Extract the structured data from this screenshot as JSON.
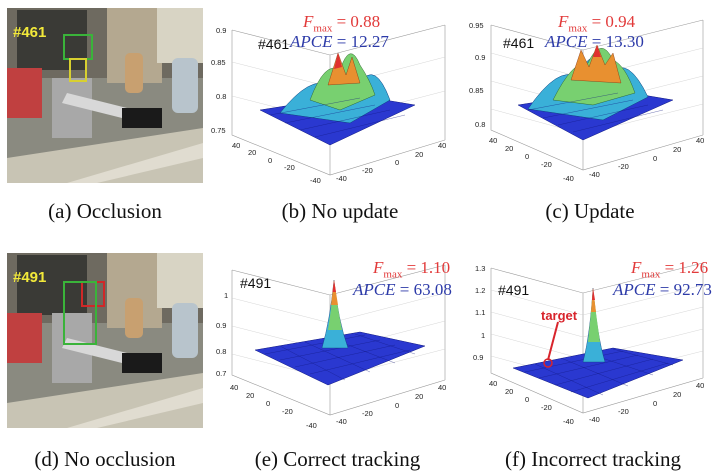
{
  "panels": [
    {
      "caption": "(a)  Occlusion",
      "frame_label": "#461"
    },
    {
      "caption": "(b)  No update",
      "fig_id": "#461",
      "fmax_symbol": "F",
      "fmax_sub": "max",
      "fmax_value": "= 0.88",
      "apce_label": "APCE",
      "apce_value": "= 12.27",
      "z_ticks": [
        "0.9",
        "0.85",
        "0.8",
        "0.75"
      ],
      "x_ticks": [
        "40",
        "20",
        "0",
        "-20",
        "-40"
      ],
      "y_ticks": [
        "-40",
        "-20",
        "0",
        "20",
        "40"
      ]
    },
    {
      "caption": "(c)  Update",
      "fig_id": "#461",
      "fmax_symbol": "F",
      "fmax_sub": "max",
      "fmax_value": "= 0.94",
      "apce_label": "APCE",
      "apce_value": "= 13.30",
      "z_ticks": [
        "0.95",
        "0.9",
        "0.85",
        "0.8"
      ],
      "x_ticks": [
        "40",
        "20",
        "0",
        "-20",
        "-40"
      ],
      "y_ticks": [
        "-40",
        "-20",
        "0",
        "20",
        "40"
      ]
    },
    {
      "caption": "(d)  No occlusion",
      "frame_label": "#491"
    },
    {
      "caption": "(e)  Correct tracking",
      "fig_id": "#491",
      "fmax_symbol": "F",
      "fmax_sub": "max",
      "fmax_value": "= 1.10",
      "apce_label": "APCE",
      "apce_value": "= 63.08",
      "z_ticks": [
        "1",
        "0.9",
        "0.8",
        "0.7"
      ],
      "x_ticks": [
        "40",
        "20",
        "0",
        "-20",
        "-40"
      ],
      "y_ticks": [
        "-40",
        "-20",
        "0",
        "20",
        "40"
      ]
    },
    {
      "caption": "(f)  Incorrect tracking",
      "fig_id": "#491",
      "fmax_symbol": "F",
      "fmax_sub": "max",
      "fmax_value": "= 1.26",
      "apce_label": "APCE",
      "apce_value": "= 92.73",
      "z_ticks": [
        "1.3",
        "1.2",
        "1.1",
        "1",
        "0.9"
      ],
      "x_ticks": [
        "40",
        "20",
        "0",
        "-20",
        "-40"
      ],
      "y_ticks": [
        "-40",
        "-20",
        "0",
        "20",
        "40"
      ],
      "annotation": "target"
    }
  ],
  "colors": {
    "fmax": "#e23a3a",
    "apce": "#2c3aa8",
    "surface_low": "#1e2fc8",
    "surface_high": "#e8342a",
    "frame_label": "#f2e93a",
    "target": "#d8242c"
  }
}
